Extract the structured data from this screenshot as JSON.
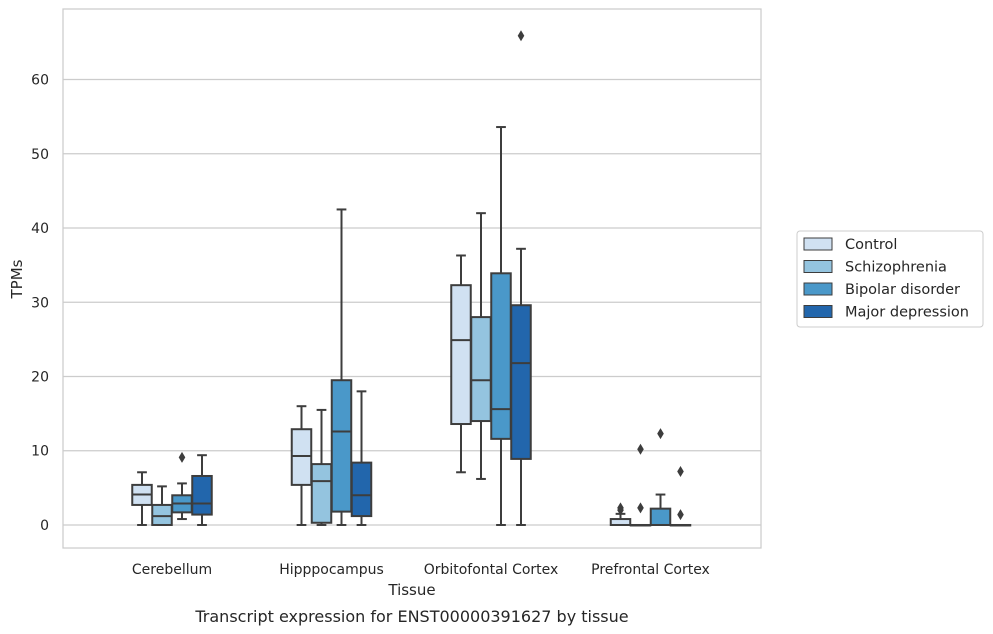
{
  "chart_data": {
    "type": "box",
    "caption": "Transcript expression for ENST00000391627 by tissue",
    "xlabel": "Tissue",
    "ylabel": "TPMs",
    "ylim": [
      -3.1,
      69.5
    ],
    "yticks": [
      0,
      10,
      20,
      30,
      40,
      50,
      60
    ],
    "grid": "horizontal",
    "legend_position": "right",
    "categories": [
      "Cerebellum",
      "Hipppocampus",
      "Orbitofontal Cortex",
      "Prefrontal Cortex"
    ],
    "series": [
      {
        "name": "Control",
        "color": "#d0e1f2",
        "boxes": [
          {
            "whislo": 0.0,
            "q1": 2.7,
            "med": 4.1,
            "q3": 5.4,
            "whishi": 7.1,
            "fliers": []
          },
          {
            "whislo": 0.0,
            "q1": 5.4,
            "med": 9.3,
            "q3": 12.9,
            "whishi": 16.0,
            "fliers": []
          },
          {
            "whislo": 7.1,
            "q1": 13.6,
            "med": 24.9,
            "q3": 32.3,
            "whishi": 36.3,
            "fliers": []
          },
          {
            "whislo": 0.0,
            "q1": 0.0,
            "med": 0.0,
            "q3": 0.8,
            "whishi": 1.5,
            "fliers": [
              2.0,
              2.3
            ]
          }
        ]
      },
      {
        "name": "Schizophrenia",
        "color": "#94c4df",
        "boxes": [
          {
            "whislo": 0.0,
            "q1": 0.0,
            "med": 1.2,
            "q3": 2.7,
            "whishi": 5.2,
            "fliers": []
          },
          {
            "whislo": 0.0,
            "q1": 0.3,
            "med": 5.9,
            "q3": 8.2,
            "whishi": 15.5,
            "fliers": []
          },
          {
            "whislo": 6.2,
            "q1": 14.0,
            "med": 19.5,
            "q3": 28.0,
            "whishi": 42.0,
            "fliers": []
          },
          {
            "whislo": 0.0,
            "q1": 0.0,
            "med": 0.0,
            "q3": 0.0,
            "whishi": 0.0,
            "fliers": [
              10.2,
              2.3
            ]
          }
        ]
      },
      {
        "name": "Bipolar disorder",
        "color": "#4a98c9",
        "boxes": [
          {
            "whislo": 0.8,
            "q1": 1.7,
            "med": 2.9,
            "q3": 4.0,
            "whishi": 5.6,
            "fliers": [
              9.1
            ]
          },
          {
            "whislo": 0.0,
            "q1": 1.8,
            "med": 12.6,
            "q3": 19.5,
            "whishi": 42.5,
            "fliers": []
          },
          {
            "whislo": 0.0,
            "q1": 11.6,
            "med": 15.6,
            "q3": 33.9,
            "whishi": 53.6,
            "fliers": []
          },
          {
            "whislo": 0.0,
            "q1": 0.0,
            "med": 0.0,
            "q3": 2.2,
            "whishi": 4.1,
            "fliers": [
              12.3
            ]
          }
        ]
      },
      {
        "name": "Major depression",
        "color": "#2266ac",
        "boxes": [
          {
            "whislo": 0.0,
            "q1": 1.4,
            "med": 2.9,
            "q3": 6.6,
            "whishi": 9.4,
            "fliers": []
          },
          {
            "whislo": 0.0,
            "q1": 1.2,
            "med": 4.0,
            "q3": 8.4,
            "whishi": 18.0,
            "fliers": []
          },
          {
            "whislo": 0.0,
            "q1": 8.9,
            "med": 21.8,
            "q3": 29.6,
            "whishi": 37.2,
            "fliers": [
              65.9
            ]
          },
          {
            "whislo": 0.0,
            "q1": 0.0,
            "med": 0.0,
            "q3": 0.0,
            "whishi": 0.0,
            "fliers": [
              7.2,
              1.4
            ]
          }
        ]
      }
    ]
  }
}
